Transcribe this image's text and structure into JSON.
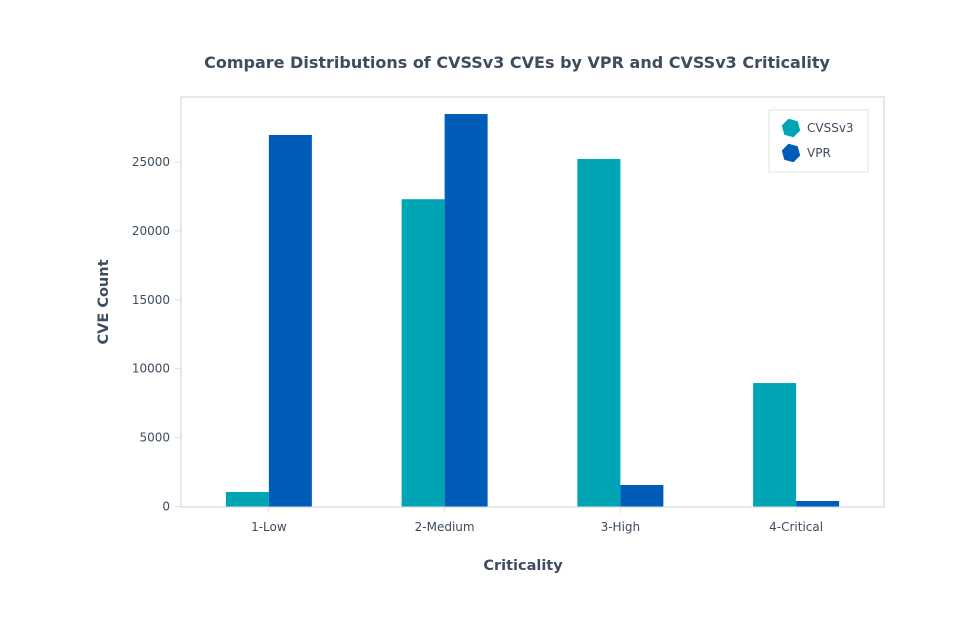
{
  "chart_data": {
    "type": "bar",
    "title": "Compare Distributions of CVSSv3 CVEs by VPR and CVSSv3 Criticality",
    "xlabel": "Criticality",
    "ylabel": "CVE Count",
    "categories": [
      "1-Low",
      "2-Medium",
      "3-High",
      "4-Critical"
    ],
    "series": [
      {
        "name": "CVSSv3",
        "color": "#00a5b5",
        "values": [
          1050,
          22300,
          25220,
          8960
        ]
      },
      {
        "name": "VPR",
        "color": "#005cb9",
        "values": [
          26960,
          28480,
          1560,
          400
        ]
      }
    ],
    "ylim": [
      0,
      29800
    ],
    "yticks": [
      0,
      5000,
      10000,
      15000,
      20000,
      25000
    ],
    "grid": false,
    "legend": {
      "position": "top-right",
      "marker": "hexagon"
    },
    "colors": {
      "text": "#3d4c5e",
      "frame": "#dce1e5"
    }
  }
}
